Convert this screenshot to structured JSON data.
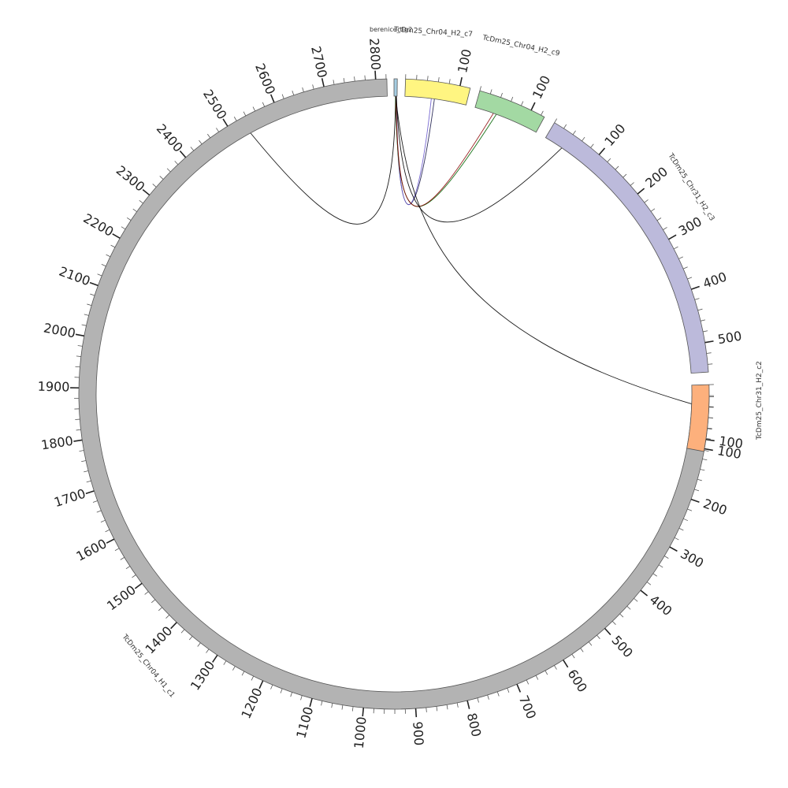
{
  "diagram": {
    "segments": [
      {
        "id": "chr04_h1_c1",
        "name": "TcDm25_Chr04_H1_c1",
        "color": "#b3b3b3",
        "ticks": [
          "100",
          "200",
          "300",
          "400",
          "500",
          "600",
          "700",
          "800",
          "900",
          "1000",
          "1100",
          "1200",
          "1300",
          "1400",
          "1500",
          "1600",
          "1700",
          "1800",
          "1900",
          "2000",
          "2100",
          "2200",
          "2300",
          "2400",
          "2500",
          "2600",
          "2700",
          "2800"
        ]
      },
      {
        "id": "berenice",
        "name": "berenice_tig2",
        "color": "#a6cee3",
        "ticks": []
      },
      {
        "id": "chr04_h2_c7",
        "name": "TcDm25_Chr04_H2_c7",
        "color": "#fff581",
        "ticks": [
          "100"
        ]
      },
      {
        "id": "chr04_h2_c9",
        "name": "TcDm25_Chr04_H2_c9",
        "color": "#a3d9a3",
        "ticks": [
          "100"
        ]
      },
      {
        "id": "chr31_h2_c3",
        "name": "TcDm25_Chr31_H2_c3",
        "color": "#bcbadb",
        "ticks": [
          "100",
          "200",
          "300",
          "400",
          "500"
        ]
      },
      {
        "id": "chr31_h2_c2",
        "name": "TcDm25_Chr31_H2_c2",
        "color": "#fdb07c",
        "ticks": [
          "100"
        ]
      }
    ],
    "links": [
      {
        "from": "berenice",
        "to": "chr04_h1_c1",
        "color": "#000000"
      },
      {
        "from": "berenice",
        "to": "chr04_h2_c7",
        "color": "#1a1a4a"
      },
      {
        "from": "berenice",
        "to": "chr04_h2_c7",
        "color": "#6a5acd"
      },
      {
        "from": "berenice",
        "to": "chr04_h2_c9",
        "color": "#006400"
      },
      {
        "from": "berenice",
        "to": "chr04_h2_c9",
        "color": "#8b0000"
      },
      {
        "from": "berenice",
        "to": "chr31_h2_c3",
        "color": "#000000"
      },
      {
        "from": "berenice",
        "to": "chr31_h2_c2",
        "color": "#000000"
      }
    ]
  }
}
